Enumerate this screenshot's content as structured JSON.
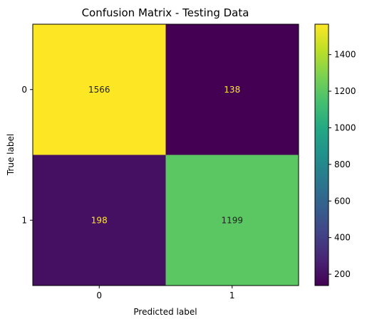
{
  "chart_data": {
    "type": "heatmap",
    "title": "Confusion Matrix - Testing Data",
    "xlabel": "Predicted label",
    "ylabel": "True label",
    "x_categories": [
      "0",
      "1"
    ],
    "y_categories": [
      "0",
      "1"
    ],
    "values": [
      [
        1566,
        138
      ],
      [
        198,
        1199
      ]
    ],
    "colormap": "viridis",
    "colorbar": {
      "range": [
        138,
        1566
      ],
      "ticks": [
        200,
        400,
        600,
        800,
        1000,
        1200,
        1400
      ],
      "tick_labels": [
        "200",
        "400",
        "600",
        "800",
        "1000",
        "1200",
        "1400"
      ]
    },
    "text_colors": {
      "on_dark": "#fde725",
      "on_light": "#1f1f1f"
    },
    "grid": false
  }
}
